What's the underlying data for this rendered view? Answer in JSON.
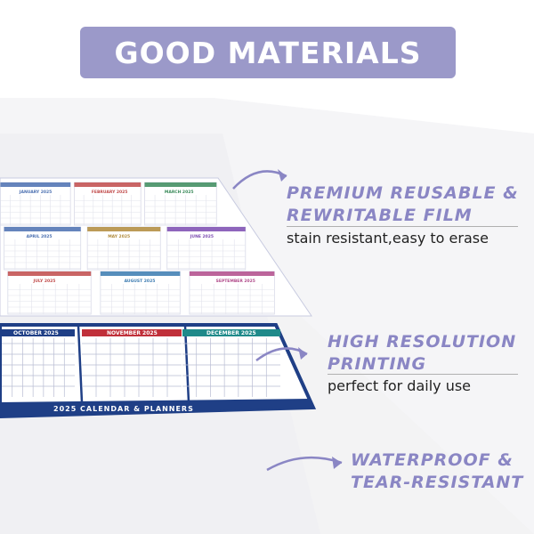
{
  "banner": {
    "title": "GOOD MATERIALS"
  },
  "features": [
    {
      "title_line1": "PREMIUM REUSABLE &",
      "title_line2": "REWRITABLE FILM",
      "subtitle": "stain resistant,easy to erase"
    },
    {
      "title_line1": "HIGH RESOLUTION",
      "title_line2": "PRINTING",
      "subtitle": "perfect for daily use"
    },
    {
      "title_line1": "WATERPROOF &",
      "title_line2": "TEAR-RESISTANT"
    }
  ],
  "calendar": {
    "footer_text": "2025 CALENDAR & PLANNERS",
    "months": [
      {
        "name": "JANUARY 2025",
        "color": "#4a6fb0"
      },
      {
        "name": "FEBRUARY 2025",
        "color": "#c04a4a"
      },
      {
        "name": "MARCH 2025",
        "color": "#3a8a5a"
      },
      {
        "name": "APRIL 2025",
        "color": "#4a6fb0"
      },
      {
        "name": "MAY 2025",
        "color": "#b08a3a"
      },
      {
        "name": "JUNE 2025",
        "color": "#7a4ab0"
      },
      {
        "name": "JULY 2025",
        "color": "#c04a4a"
      },
      {
        "name": "AUGUST 2025",
        "color": "#3a7ab0"
      },
      {
        "name": "SEPTEMBER 2025",
        "color": "#b04a8a"
      },
      {
        "name": "OCTOBER 2025",
        "color": "#1f3f86"
      },
      {
        "name": "NOVEMBER 2025",
        "color": "#c0303a"
      },
      {
        "name": "DECEMBER 2025",
        "color": "#1f8a8a"
      }
    ],
    "frame_color": "#1f3f86"
  },
  "colors": {
    "banner": "#9b99c9",
    "accent": "#8a86c4",
    "arrow": "#8a86c4"
  }
}
